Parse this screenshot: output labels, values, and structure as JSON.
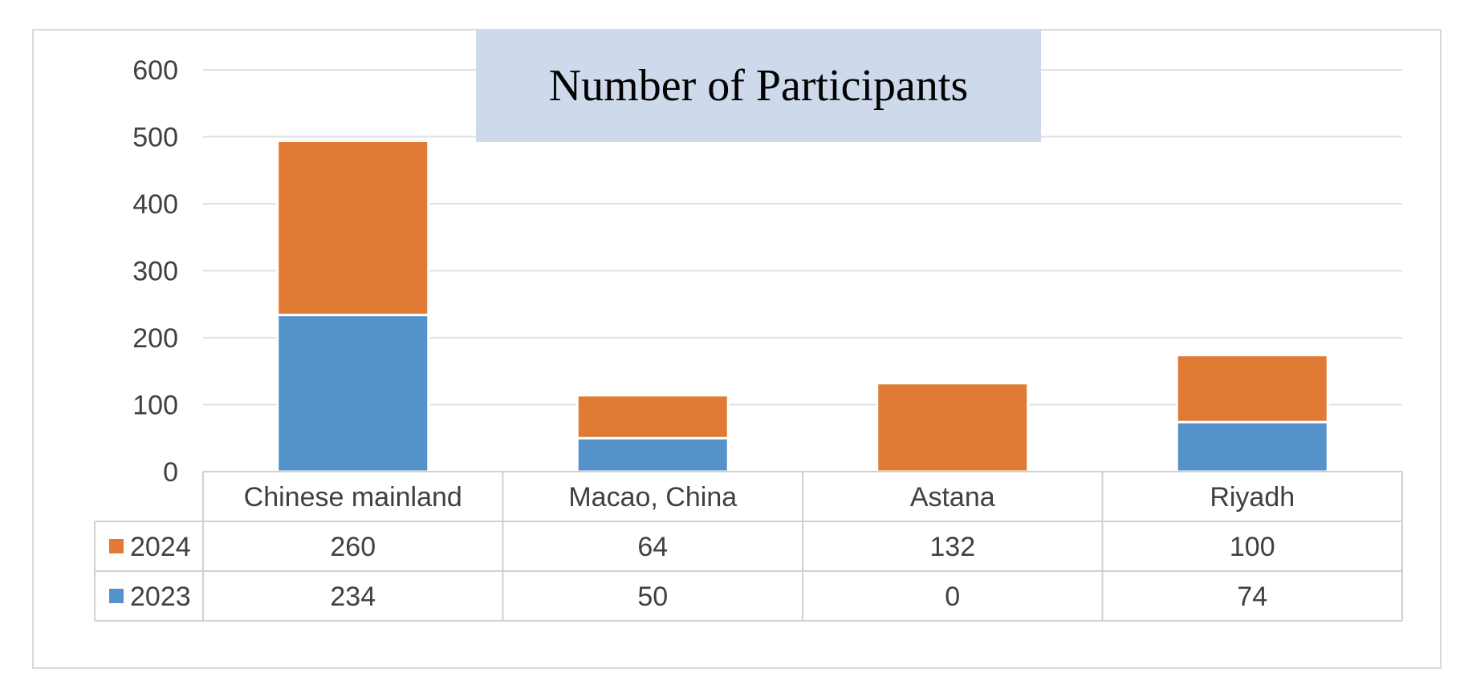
{
  "chart_data": {
    "type": "bar",
    "stacked": true,
    "title": "Number of Participants",
    "categories": [
      "Chinese mainland",
      "Macao, China",
      "Astana",
      "Riyadh"
    ],
    "series": [
      {
        "name": "2023",
        "values": [
          234,
          50,
          0,
          74
        ],
        "color": "#5592c9"
      },
      {
        "name": "2024",
        "values": [
          260,
          64,
          132,
          100
        ],
        "color": "#e07a35"
      }
    ],
    "table_order": [
      "2024",
      "2023"
    ],
    "ylim": [
      0,
      600
    ],
    "yticks": [
      "0",
      "100",
      "200",
      "300",
      "400",
      "500",
      "600"
    ],
    "grid": true,
    "legend": "data table"
  },
  "colors": {
    "title_background": "#cfd9ec",
    "gridline": "#e0e0e0",
    "table_border": "#d0d0d0",
    "text": "#404040"
  }
}
